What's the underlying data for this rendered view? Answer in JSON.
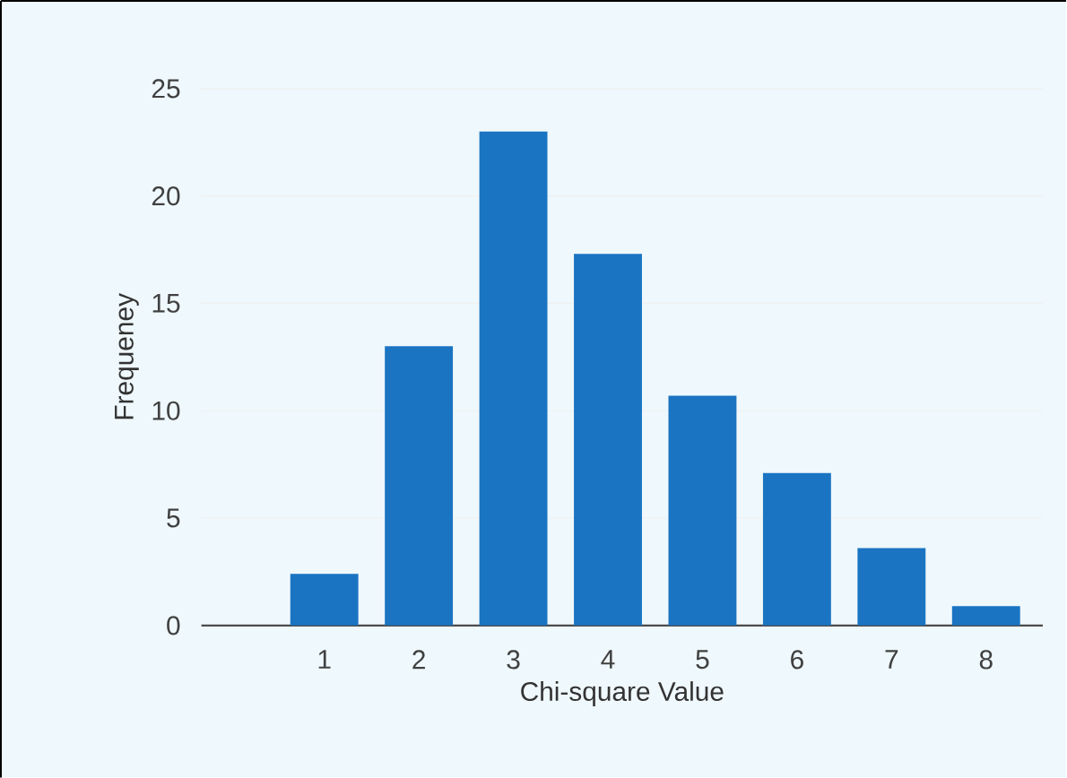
{
  "chart_data": {
    "type": "bar",
    "xlabel": "Chi-square Value",
    "ylabel": "Frequeney",
    "categories": [
      "1",
      "2",
      "3",
      "4",
      "5",
      "6",
      "7",
      "8"
    ],
    "values": [
      2.4,
      13.0,
      23.0,
      17.3,
      10.7,
      7.1,
      3.6,
      0.9
    ],
    "color": "#1a74c2",
    "ylim": [
      0,
      25
    ],
    "yticks": [
      0,
      5,
      10,
      15,
      20,
      25
    ],
    "grid": "y"
  }
}
